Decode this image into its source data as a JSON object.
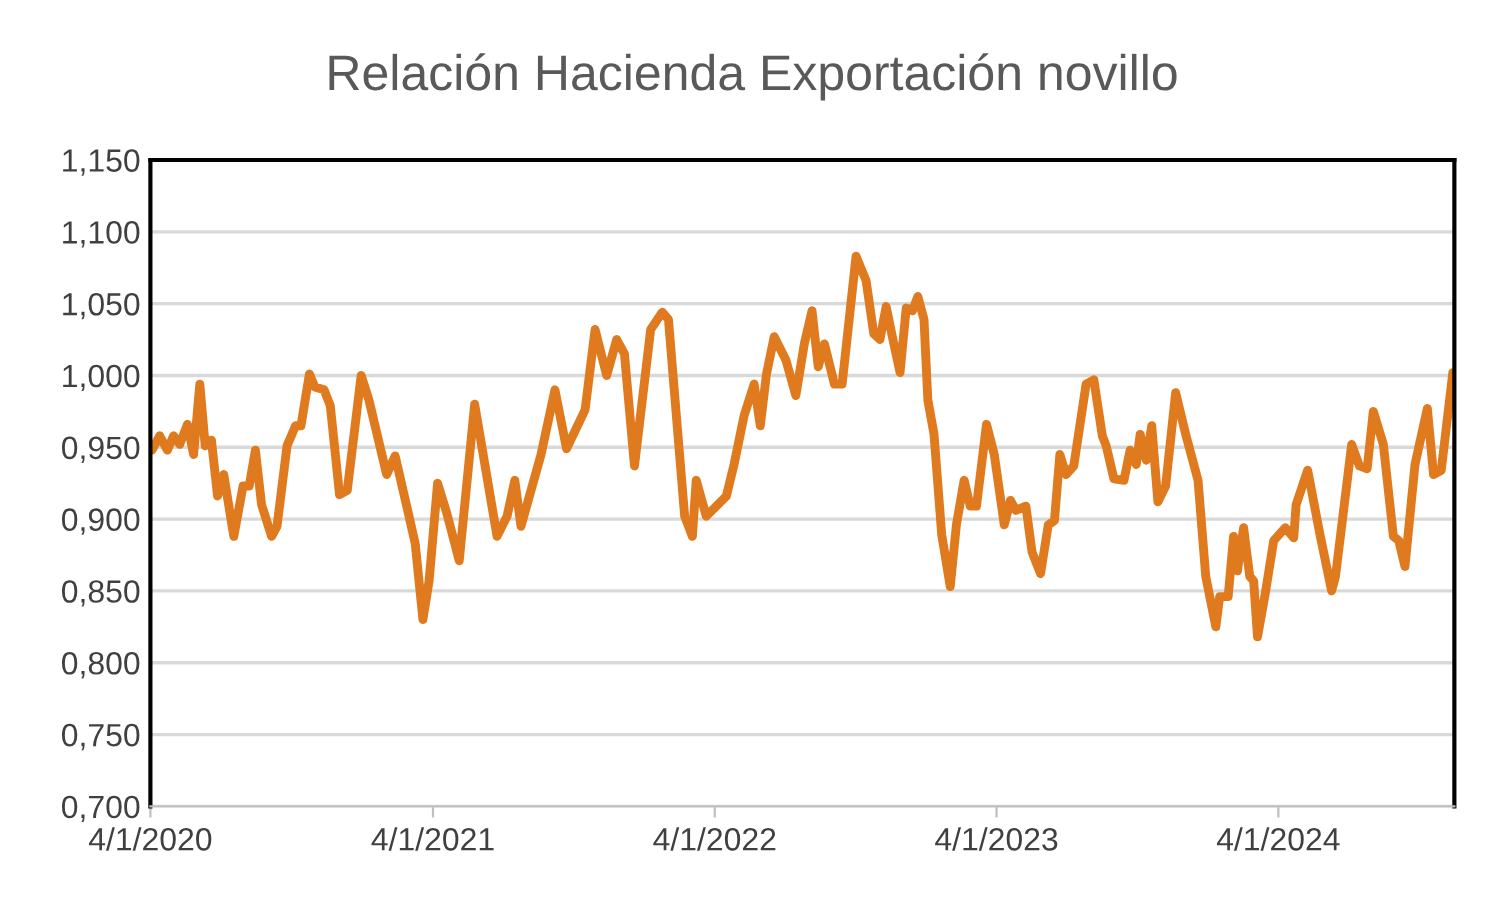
{
  "chart_data": {
    "type": "line",
    "title": "Relación Hacienda Exportación novillo",
    "x": [
      "2020-01-06",
      "2020-01-16",
      "2020-01-26",
      "2020-02-03",
      "2020-02-11",
      "2020-02-21",
      "2020-02-29",
      "2020-03-08",
      "2020-03-15",
      "2020-03-23",
      "2020-03-31",
      "2020-04-08",
      "2020-04-21",
      "2020-05-03",
      "2020-05-11",
      "2020-05-19",
      "2020-05-27",
      "2020-06-09",
      "2020-06-16",
      "2020-06-29",
      "2020-07-10",
      "2020-07-17",
      "2020-07-28",
      "2020-08-04",
      "2020-08-16",
      "2020-08-24",
      "2020-09-05",
      "2020-09-15",
      "2020-10-03",
      "2020-10-13",
      "2020-11-05",
      "2020-11-16",
      "2020-12-01",
      "2020-12-12",
      "2020-12-22",
      "2020-12-30",
      "2021-01-10",
      "2021-01-22",
      "2021-02-07",
      "2021-02-27",
      "2021-03-28",
      "2021-04-10",
      "2021-04-20",
      "2021-04-28",
      "2021-05-24",
      "2021-06-11",
      "2021-06-26",
      "2021-07-20",
      "2021-08-02",
      "2021-08-17",
      "2021-08-30",
      "2021-09-09",
      "2021-09-22",
      "2021-10-13",
      "2021-10-28",
      "2021-11-05",
      "2021-11-26",
      "2021-12-06",
      "2021-12-11",
      "2021-12-24",
      "2022-01-19",
      "2022-01-29",
      "2022-02-11",
      "2022-02-24",
      "2022-03-04",
      "2022-03-12",
      "2022-03-22",
      "2022-04-06",
      "2022-04-19",
      "2022-04-30",
      "2022-05-10",
      "2022-05-18",
      "2022-05-26",
      "2022-06-08",
      "2022-06-18",
      "2022-07-06",
      "2022-07-19",
      "2022-07-29",
      "2022-08-06",
      "2022-08-14",
      "2022-08-22",
      "2022-09-01",
      "2022-09-09",
      "2022-09-17",
      "2022-09-24",
      "2022-10-02",
      "2022-10-07",
      "2022-10-15",
      "2022-10-25",
      "2022-11-05",
      "2022-11-13",
      "2022-11-23",
      "2022-12-01",
      "2022-12-09",
      "2022-12-22",
      "2023-01-01",
      "2023-01-14",
      "2023-01-22",
      "2023-01-29",
      "2023-02-11",
      "2023-02-19",
      "2023-03-02",
      "2023-03-12",
      "2023-03-20",
      "2023-03-27",
      "2023-04-04",
      "2023-04-14",
      "2023-04-30",
      "2023-05-10",
      "2023-05-21",
      "2023-05-26",
      "2023-06-05",
      "2023-06-18",
      "2023-06-26",
      "2023-07-04",
      "2023-07-09",
      "2023-07-17",
      "2023-07-24",
      "2023-08-01",
      "2023-08-11",
      "2023-08-24",
      "2023-09-06",
      "2023-09-22",
      "2023-10-02",
      "2023-10-15",
      "2023-10-20",
      "2023-10-31",
      "2023-11-07",
      "2023-11-12",
      "2023-11-20",
      "2023-11-28",
      "2023-12-03",
      "2023-12-08",
      "2023-12-18",
      "2023-12-29",
      "2024-01-13",
      "2024-01-24",
      "2024-01-27",
      "2024-02-11",
      "2024-02-27",
      "2024-03-13",
      "2024-03-18",
      "2024-04-08",
      "2024-04-18",
      "2024-04-28",
      "2024-05-06",
      "2024-05-19",
      "2024-06-01",
      "2024-06-08",
      "2024-06-16",
      "2024-06-29",
      "2024-07-15",
      "2024-07-23",
      "2024-08-02",
      "2024-08-17"
    ],
    "series": [
      {
        "color": "#e07a1f",
        "values": [
          0.948,
          0.958,
          0.948,
          0.958,
          0.952,
          0.966,
          0.945,
          0.994,
          0.951,
          0.955,
          0.916,
          0.931,
          0.888,
          0.923,
          0.923,
          0.948,
          0.91,
          0.888,
          0.895,
          0.951,
          0.965,
          0.965,
          1.001,
          0.992,
          0.99,
          0.979,
          0.917,
          0.92,
          1.0,
          0.983,
          0.931,
          0.944,
          0.909,
          0.883,
          0.83,
          0.857,
          0.925,
          0.904,
          0.871,
          0.98,
          0.888,
          0.902,
          0.927,
          0.895,
          0.945,
          0.99,
          0.949,
          0.976,
          1.032,
          1.0,
          1.025,
          1.015,
          0.937,
          1.032,
          1.044,
          1.039,
          0.902,
          0.888,
          0.927,
          0.902,
          0.916,
          0.938,
          0.972,
          0.994,
          0.965,
          1.001,
          1.027,
          1.011,
          0.986,
          1.022,
          1.045,
          1.006,
          1.022,
          0.994,
          0.994,
          1.083,
          1.066,
          1.029,
          1.025,
          1.048,
          1.027,
          1.002,
          1.047,
          1.045,
          1.055,
          1.039,
          0.983,
          0.959,
          0.889,
          0.853,
          0.896,
          0.927,
          0.909,
          0.909,
          0.966,
          0.945,
          0.896,
          0.913,
          0.906,
          0.909,
          0.877,
          0.862,
          0.896,
          0.899,
          0.945,
          0.931,
          0.937,
          0.994,
          0.997,
          0.958,
          0.951,
          0.928,
          0.927,
          0.948,
          0.938,
          0.959,
          0.941,
          0.965,
          0.912,
          0.923,
          0.988,
          0.959,
          0.927,
          0.86,
          0.825,
          0.846,
          0.846,
          0.888,
          0.864,
          0.894,
          0.86,
          0.857,
          0.818,
          0.848,
          0.885,
          0.894,
          0.887,
          0.91,
          0.934,
          0.889,
          0.85,
          0.86,
          0.952,
          0.937,
          0.935,
          0.975,
          0.952,
          0.888,
          0.885,
          0.867,
          0.938,
          0.977,
          0.931,
          0.934,
          1.002
        ]
      }
    ],
    "xlim": [
      "2020-01-04",
      "2024-08-19"
    ],
    "xticks": [
      {
        "value": "2020-01-04",
        "label": "4/1/2020"
      },
      {
        "value": "2021-01-04",
        "label": "4/1/2021"
      },
      {
        "value": "2022-01-04",
        "label": "4/1/2022"
      },
      {
        "value": "2023-01-04",
        "label": "4/1/2023"
      },
      {
        "value": "2024-01-04",
        "label": "4/1/2024"
      }
    ],
    "ylim": [
      0.7,
      1.15
    ],
    "yticks": [
      {
        "value": 0.7,
        "label": "0,700"
      },
      {
        "value": 0.75,
        "label": "0,750"
      },
      {
        "value": 0.8,
        "label": "0,800"
      },
      {
        "value": 0.85,
        "label": "0,850"
      },
      {
        "value": 0.9,
        "label": "0,900"
      },
      {
        "value": 0.95,
        "label": "0,950"
      },
      {
        "value": 1.0,
        "label": "1,000"
      },
      {
        "value": 1.05,
        "label": "1,050"
      },
      {
        "value": 1.1,
        "label": "1,100"
      },
      {
        "value": 1.15,
        "label": "1,150"
      }
    ],
    "grid": "y",
    "marker": "none",
    "line_style": "solid"
  }
}
